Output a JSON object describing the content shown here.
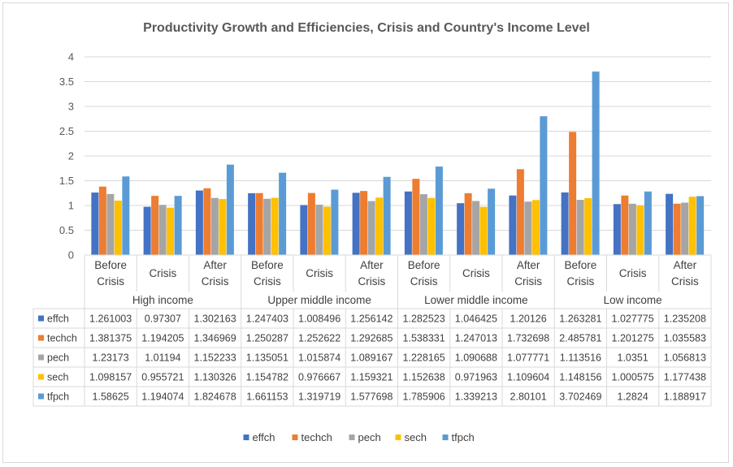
{
  "chart_data": {
    "type": "bar",
    "title": "Productivity Growth and Efficiencies, Crisis and Country's Income Level",
    "ylim": [
      0,
      4
    ],
    "yticks": [
      "0",
      "0.5",
      "1",
      "1.5",
      "2",
      "2.5",
      "3",
      "3.5",
      "4"
    ],
    "grid": true,
    "legend_position": "bottom",
    "groups": [
      "High income",
      "Upper middle income",
      "Lower middle income",
      "Low income"
    ],
    "categories": [
      [
        "Before",
        "Crisis"
      ],
      [
        "Crisis"
      ],
      [
        "After",
        "Crisis"
      ],
      [
        "Before",
        "Crisis"
      ],
      [
        "Crisis"
      ],
      [
        "After",
        "Crisis"
      ],
      [
        "Before",
        "Crisis"
      ],
      [
        "Crisis"
      ],
      [
        "After",
        "Crisis"
      ],
      [
        "Before",
        "Crisis"
      ],
      [
        "Crisis"
      ],
      [
        "After",
        "Crisis"
      ]
    ],
    "series": [
      {
        "name": "effch",
        "color": "#4472C4",
        "labels": [
          "1.261003",
          "0.97307",
          "1.302163",
          "1.247403",
          "1.008496",
          "1.256142",
          "1.282523",
          "1.046425",
          "1.20126",
          "1.263281",
          "1.027775",
          "1.235208"
        ],
        "values": [
          1.261003,
          0.97307,
          1.302163,
          1.247403,
          1.008496,
          1.256142,
          1.282523,
          1.046425,
          1.20126,
          1.263281,
          1.027775,
          1.235208
        ]
      },
      {
        "name": "techch",
        "color": "#ED7D31",
        "labels": [
          "1.381375",
          "1.194205",
          "1.346969",
          "1.250287",
          "1.252622",
          "1.292685",
          "1.538331",
          "1.247013",
          "1.732698",
          "2.485781",
          "1.201275",
          "1.035583"
        ],
        "values": [
          1.381375,
          1.194205,
          1.346969,
          1.250287,
          1.252622,
          1.292685,
          1.538331,
          1.247013,
          1.732698,
          2.485781,
          1.201275,
          1.035583
        ]
      },
      {
        "name": "pech",
        "color": "#A5A5A5",
        "labels": [
          "1.23173",
          "1.01194",
          "1.152233",
          "1.135051",
          "1.015874",
          "1.089167",
          "1.228165",
          "1.090688",
          "1.077771",
          "1.113516",
          "1.0351",
          "1.056813"
        ],
        "values": [
          1.23173,
          1.01194,
          1.152233,
          1.135051,
          1.015874,
          1.089167,
          1.228165,
          1.090688,
          1.077771,
          1.113516,
          1.0351,
          1.056813
        ]
      },
      {
        "name": "sech",
        "color": "#FFC000",
        "labels": [
          "1.098157",
          "0.955721",
          "1.130326",
          "1.154782",
          "0.976667",
          "1.159321",
          "1.152638",
          "0.971963",
          "1.109604",
          "1.148156",
          "1.000575",
          "1.177438"
        ],
        "values": [
          1.098157,
          0.955721,
          1.130326,
          1.154782,
          0.976667,
          1.159321,
          1.152638,
          0.971963,
          1.109604,
          1.148156,
          1.000575,
          1.177438
        ]
      },
      {
        "name": "tfpch",
        "color": "#5B9BD5",
        "labels": [
          "1.58625",
          "1.194074",
          "1.824678",
          "1.661153",
          "1.319719",
          "1.577698",
          "1.785906",
          "1.339213",
          "2.80101",
          "3.702469",
          "1.2824",
          "1.188917"
        ],
        "values": [
          1.58625,
          1.194074,
          1.824678,
          1.661153,
          1.319719,
          1.577698,
          1.785906,
          1.339213,
          2.80101,
          3.702469,
          1.2824,
          1.188917
        ]
      }
    ]
  }
}
